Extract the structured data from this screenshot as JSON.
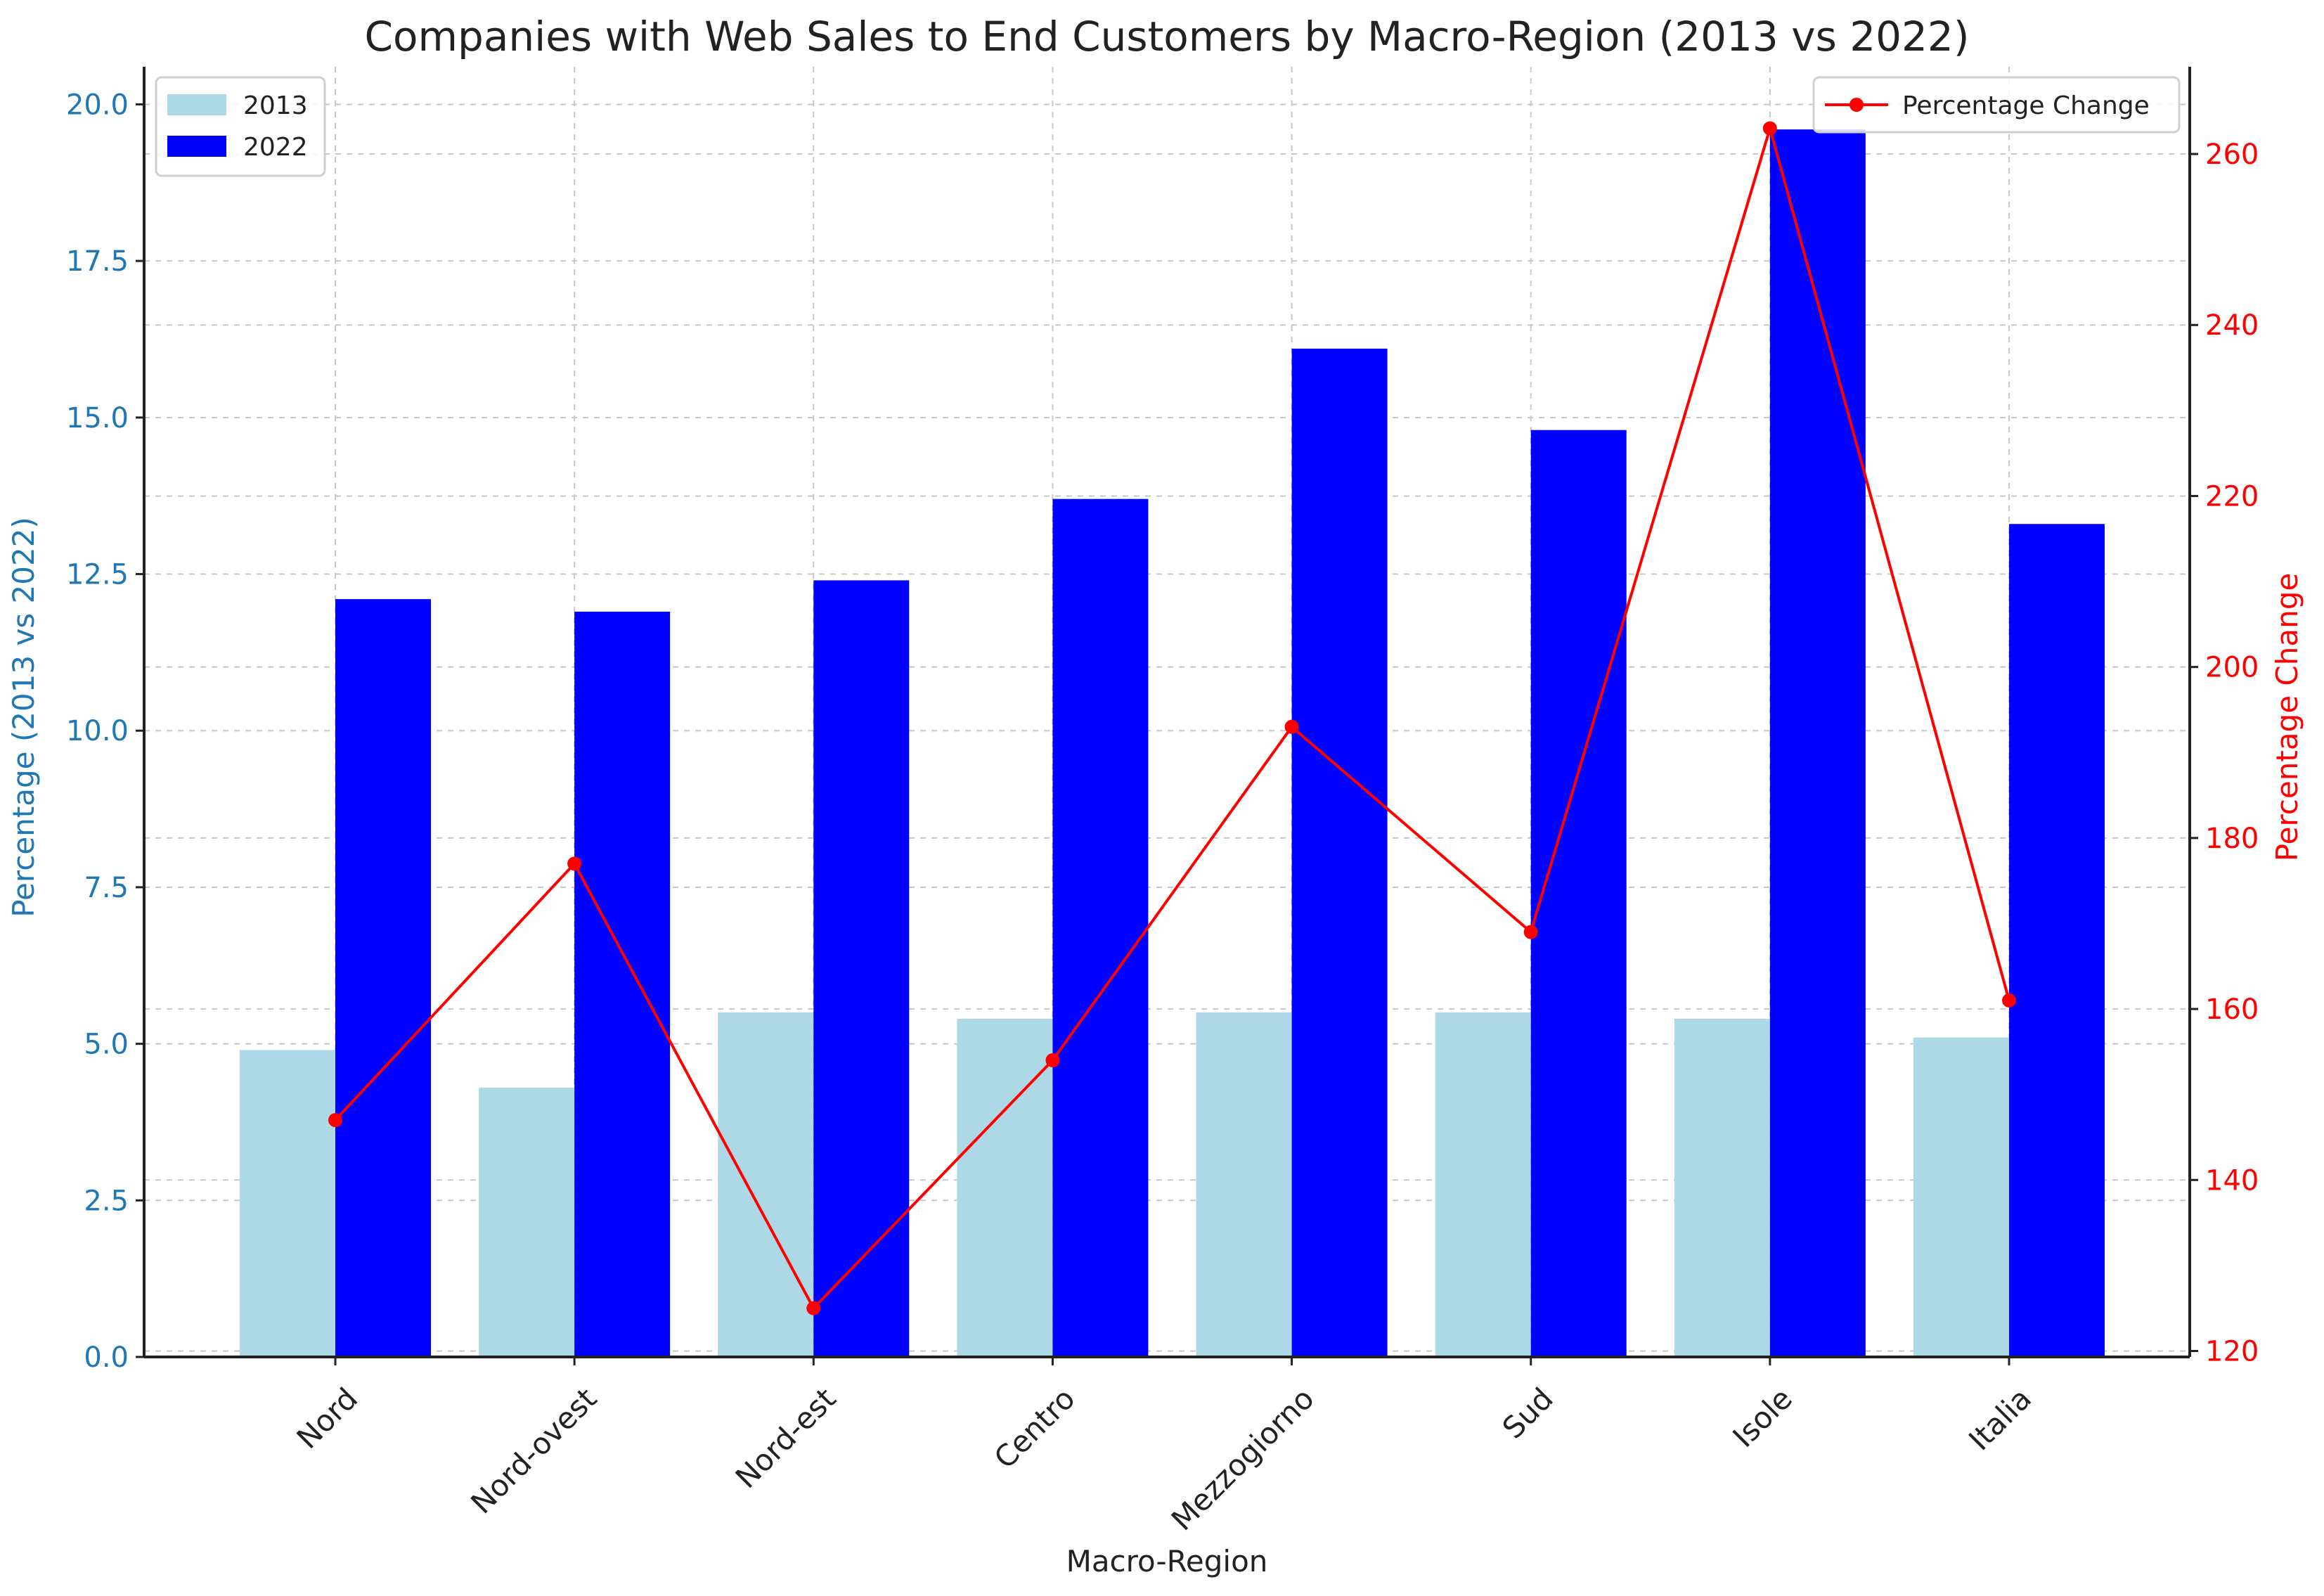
{
  "chart_data": {
    "type": "bar",
    "title": "Companies with Web Sales to End Customers by Macro-Region (2013 vs 2022)",
    "xlabel": "Macro-Region",
    "ylabel": "Percentage (2013 vs 2022)",
    "y2label": "Percentage Change",
    "categories": [
      "Nord",
      "Nord-ovest",
      "Nord-est",
      "Centro",
      "Mezzogiorno",
      "Sud",
      "Isole",
      "Italia"
    ],
    "series": [
      {
        "name": "2013",
        "type": "bar",
        "axis": "left",
        "color": "#add8e6",
        "values": [
          4.9,
          4.3,
          5.5,
          5.4,
          5.5,
          5.5,
          5.4,
          5.1
        ]
      },
      {
        "name": "2022",
        "type": "bar",
        "axis": "left",
        "color": "#0000ff",
        "values": [
          12.1,
          11.9,
          12.4,
          13.7,
          16.1,
          14.8,
          19.6,
          13.3
        ]
      },
      {
        "name": "Percentage Change",
        "type": "line",
        "axis": "right",
        "color": "#ff0000",
        "marker": "circle",
        "values": [
          147,
          177,
          125,
          154,
          193,
          169,
          263,
          161
        ]
      }
    ],
    "ylim": [
      0,
      20.6
    ],
    "y2lim": [
      119.3,
      270.2
    ],
    "yticks": [
      "0.0",
      "2.5",
      "5.0",
      "7.5",
      "10.0",
      "12.5",
      "15.0",
      "17.5",
      "20.0"
    ],
    "y2ticks": [
      "120",
      "140",
      "160",
      "180",
      "200",
      "220",
      "240",
      "260"
    ],
    "grid": true,
    "legend_left": "top-left",
    "legend_right": "top-right",
    "colors": {
      "left_axis": "#1f77b4",
      "right_axis": "#ff0000",
      "text": "#222222"
    }
  }
}
